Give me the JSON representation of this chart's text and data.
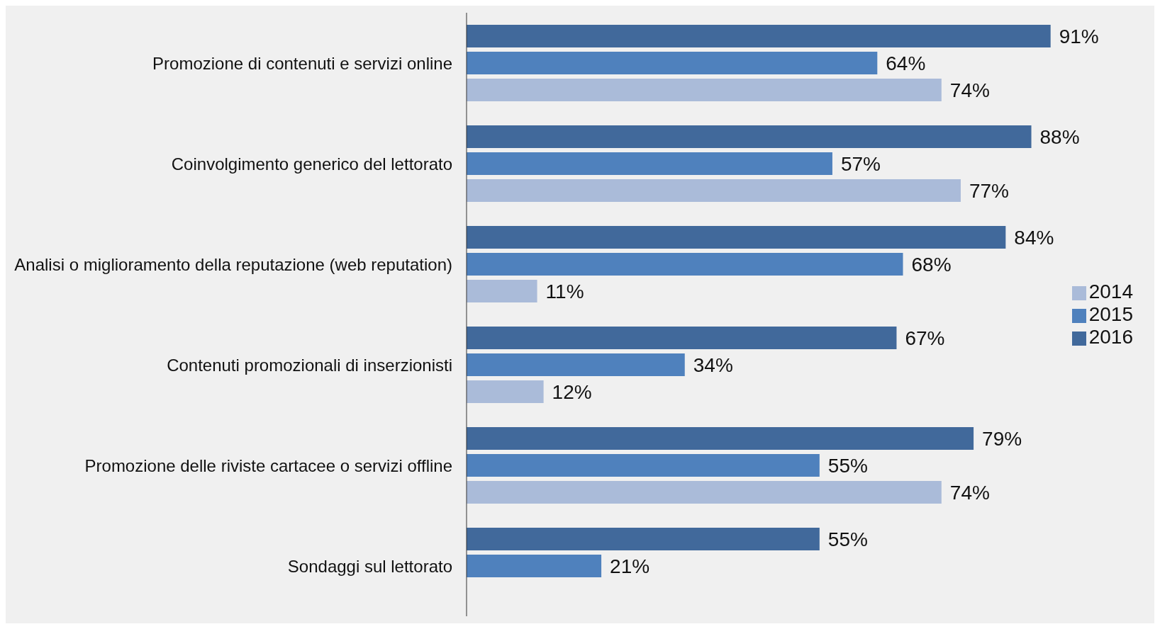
{
  "chart_data": {
    "type": "bar",
    "orientation": "horizontal",
    "categories": [
      "Promozione di contenuti e servizi online",
      "Coinvolgimento generico del lettorato",
      "Analisi o miglioramento della reputazione (web reputation)",
      "Contenuti promozionali di inserzionisti",
      "Promozione delle riviste cartacee o servizi offline",
      "Sondaggi sul lettorato"
    ],
    "series": [
      {
        "name": "2016",
        "color": "#41699b",
        "values": [
          91,
          88,
          84,
          67,
          79,
          55
        ],
        "value_labels": [
          "91%",
          "88%",
          "84%",
          "67%",
          "79%",
          "55%"
        ]
      },
      {
        "name": "2015",
        "color": "#4f81bd",
        "values": [
          64,
          57,
          68,
          34,
          55,
          21
        ],
        "value_labels": [
          "64%",
          "57%",
          "68%",
          "34%",
          "55%",
          "21%"
        ]
      },
      {
        "name": "2014",
        "color": "#aabbd9",
        "values": [
          74,
          77,
          11,
          12,
          74,
          null
        ],
        "value_labels": [
          "74%",
          "77%",
          "11%",
          "12%",
          "74%",
          null
        ]
      }
    ],
    "legend": "right",
    "grid": false
  }
}
